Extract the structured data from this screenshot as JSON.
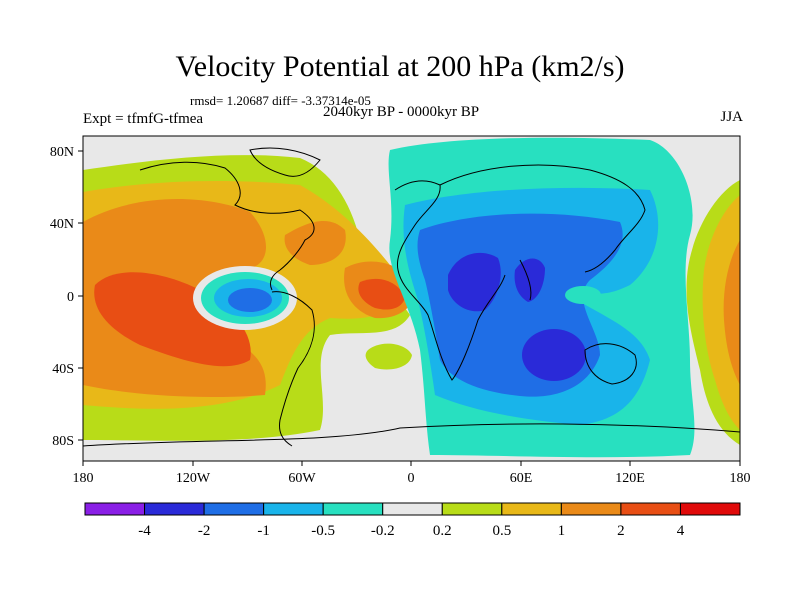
{
  "header": {
    "title": "Velocity Potential at 200 hPa (km2/s)",
    "stats": "rmsd= 1.20687 diff= -3.37314e-05",
    "experiment": "Expt = tfmfG-tfmea",
    "period": "2040kyr BP - 0000kyr BP",
    "season": "JJA"
  },
  "axes": {
    "y_ticks": [
      "80N",
      "40N",
      "0",
      "40S",
      "80S"
    ],
    "x_ticks": [
      "180",
      "120W",
      "60W",
      "0",
      "60E",
      "120E",
      "180"
    ]
  },
  "colorbar": {
    "colors": [
      "#8a1fe6",
      "#2a2ad8",
      "#1f6ee6",
      "#19b4ea",
      "#28e0c0",
      "#e8e8e8",
      "#b8dc18",
      "#e8b818",
      "#ea8a18",
      "#e84e14",
      "#e00a0a"
    ],
    "labels": [
      "-4",
      "-2",
      "-1",
      "-0.5",
      "-0.2",
      "0.2",
      "0.5",
      "1",
      "2",
      "4"
    ]
  }
}
